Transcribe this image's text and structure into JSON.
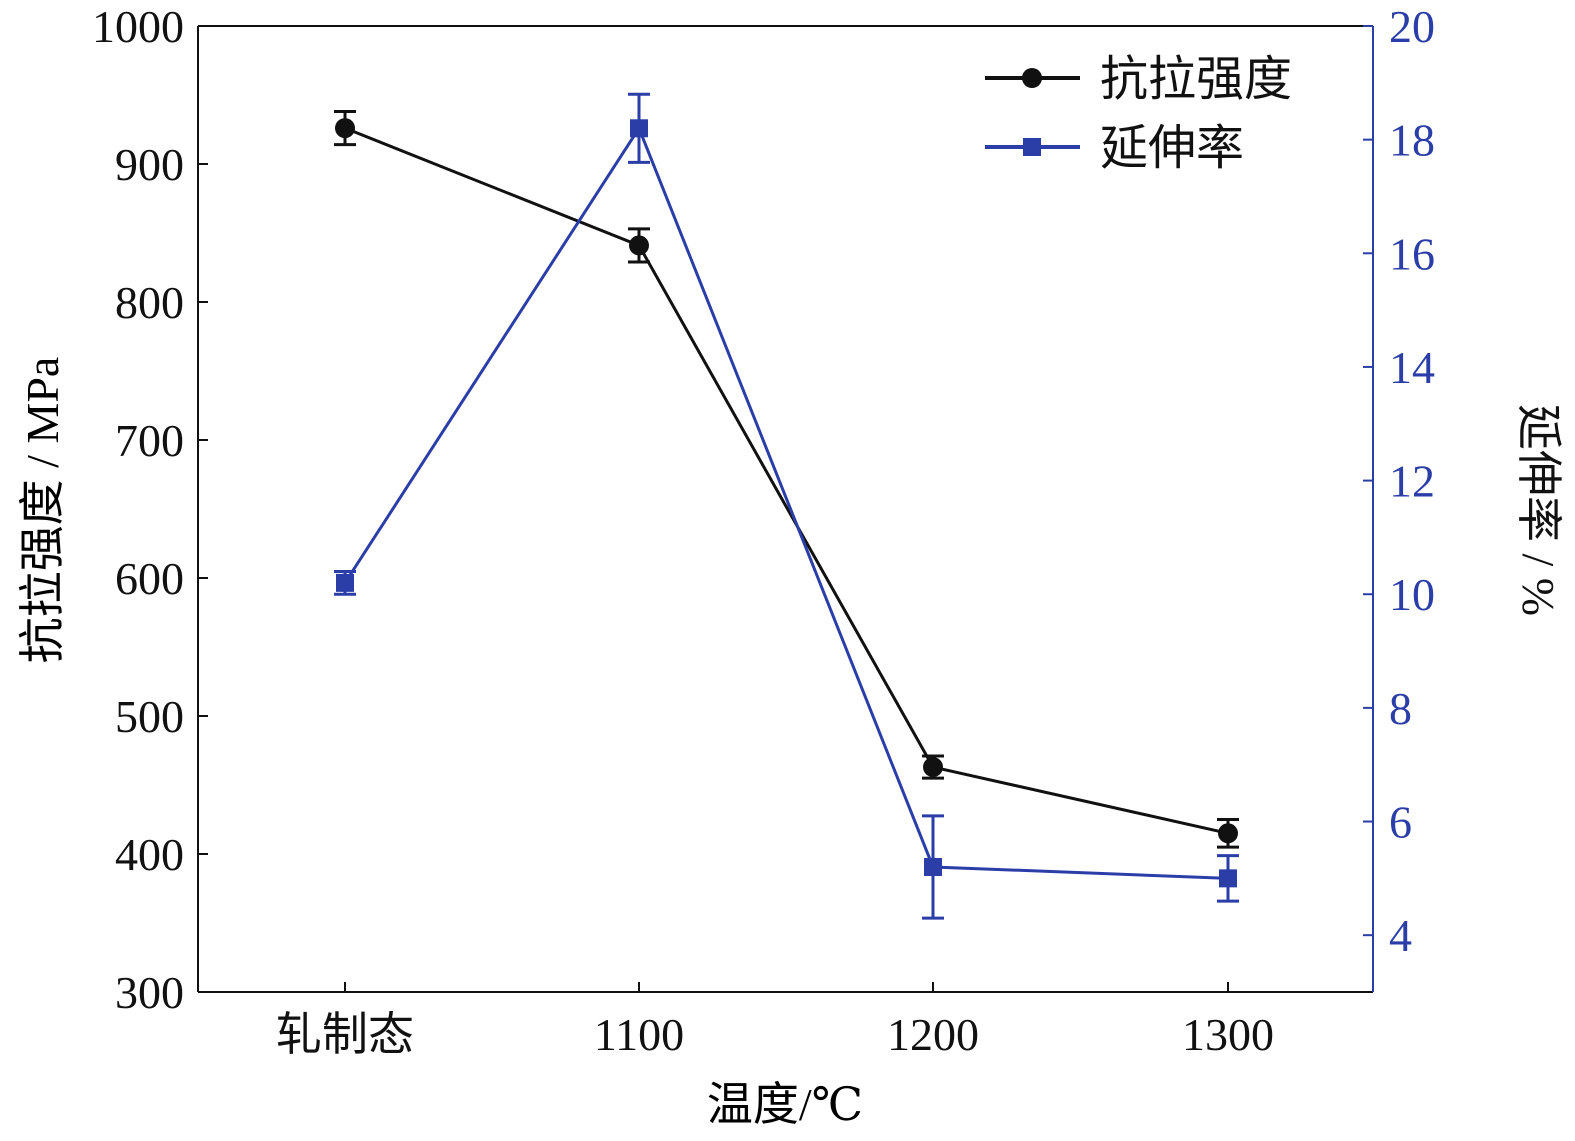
{
  "chart_data": {
    "type": "line",
    "categories": [
      "轧制态",
      "1100",
      "1200",
      "1300"
    ],
    "xlabel": "温度/℃",
    "y_left": {
      "label": "抗拉强度 / MPa",
      "lim": [
        300,
        1000
      ],
      "ticks": [
        300,
        400,
        500,
        600,
        700,
        800,
        900,
        1000
      ]
    },
    "y_right": {
      "label": "延伸率 / %",
      "lim": [
        3,
        20
      ],
      "ticks": [
        4,
        6,
        8,
        10,
        12,
        14,
        16,
        18,
        20
      ]
    },
    "legend": {
      "position": "top-right"
    },
    "grid": false,
    "series": [
      {
        "name": "抗拉强度",
        "axis": "left",
        "color": "#111111",
        "marker": "circle",
        "values": [
          926,
          841,
          463,
          415
        ],
        "errors": [
          12,
          12,
          8,
          10
        ]
      },
      {
        "name": "延伸率",
        "axis": "right",
        "color": "#2b3ea8",
        "marker": "square",
        "values": [
          10.2,
          18.2,
          5.2,
          5.0
        ],
        "errors": [
          0.2,
          0.6,
          0.9,
          0.4
        ]
      }
    ]
  }
}
